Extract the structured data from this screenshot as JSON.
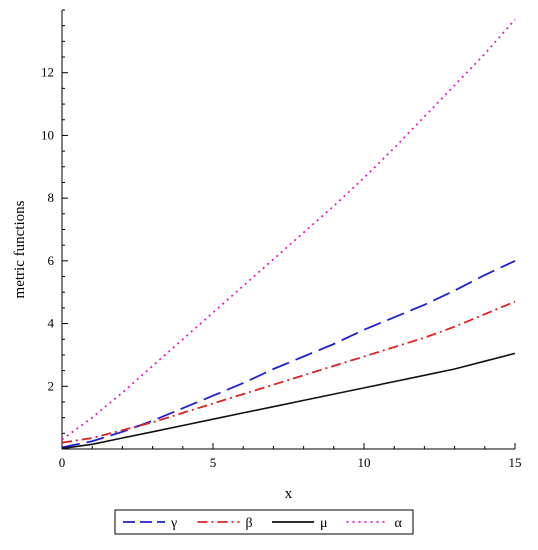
{
  "chart_data": {
    "type": "line",
    "xlabel": "x",
    "ylabel": "metric functions",
    "xlim": [
      0,
      15
    ],
    "ylim": [
      0,
      14
    ],
    "x_ticks": [
      0,
      5,
      10,
      15
    ],
    "y_ticks": [
      2,
      4,
      6,
      8,
      10,
      12
    ],
    "grid": false,
    "legend_position": "bottom",
    "series": [
      {
        "name": "γ",
        "color": "#1f1fd6",
        "dash": "long-dash",
        "x": [
          0,
          1,
          2,
          3,
          4,
          5,
          6,
          7,
          8,
          9,
          10,
          11,
          12,
          13,
          14,
          15
        ],
        "y": [
          0.05,
          0.25,
          0.55,
          0.9,
          1.3,
          1.7,
          2.1,
          2.55,
          2.95,
          3.35,
          3.8,
          4.2,
          4.6,
          5.05,
          5.55,
          6.0
        ]
      },
      {
        "name": "β",
        "color": "#e02020",
        "dash": "dash-dot",
        "x": [
          0,
          1,
          2,
          3,
          4,
          5,
          6,
          7,
          8,
          9,
          10,
          11,
          12,
          13,
          14,
          15
        ],
        "y": [
          0.2,
          0.35,
          0.6,
          0.85,
          1.15,
          1.45,
          1.75,
          2.05,
          2.35,
          2.65,
          2.95,
          3.25,
          3.55,
          3.9,
          4.3,
          4.7
        ]
      },
      {
        "name": "μ",
        "color": "#111111",
        "dash": "solid",
        "x": [
          0,
          1,
          2,
          3,
          4,
          5,
          6,
          7,
          8,
          9,
          10,
          11,
          12,
          13,
          14,
          15
        ],
        "y": [
          0.02,
          0.15,
          0.35,
          0.55,
          0.75,
          0.95,
          1.15,
          1.35,
          1.55,
          1.75,
          1.95,
          2.15,
          2.35,
          2.55,
          2.8,
          3.05
        ]
      },
      {
        "name": "α",
        "color": "#e020c0",
        "dash": "dotted",
        "x": [
          0,
          1,
          2,
          3,
          4,
          5,
          6,
          7,
          8,
          9,
          10,
          11,
          12,
          13,
          14,
          15
        ],
        "y": [
          0.3,
          1.0,
          1.8,
          2.65,
          3.5,
          4.35,
          5.2,
          6.05,
          6.9,
          7.75,
          8.65,
          9.6,
          10.6,
          11.6,
          12.6,
          13.7
        ]
      }
    ]
  }
}
